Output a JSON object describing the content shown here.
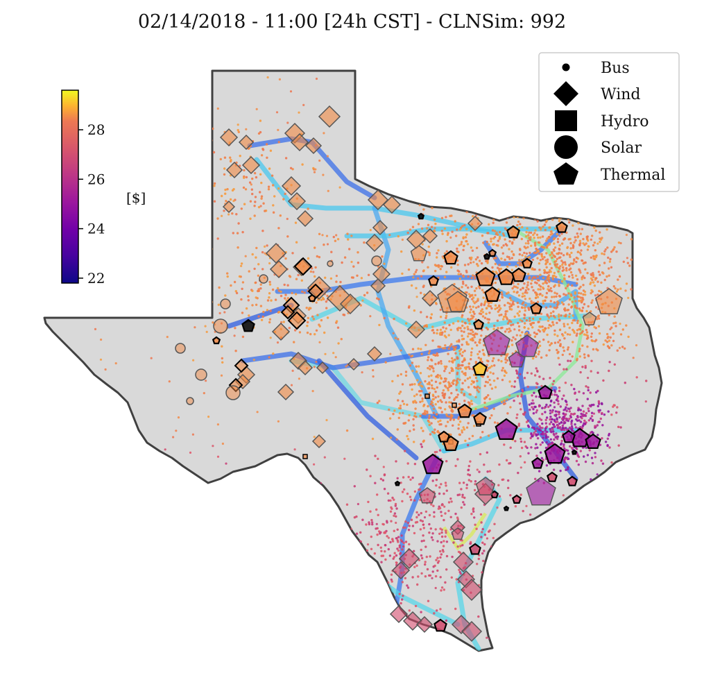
{
  "title": "02/14/2018 - 11:00 [24h CST] - CLNSim: 992",
  "colorbar": {
    "colormap": "plasma",
    "min": 21.8,
    "max": 29.6,
    "ticks": [
      "22",
      "24",
      "26",
      "28"
    ],
    "tick_values": [
      22,
      24,
      26,
      28
    ],
    "label": "[$]"
  },
  "legend": {
    "placement": "top-right",
    "entries": [
      {
        "name": "Bus",
        "marker": "dot-icon"
      },
      {
        "name": "Wind",
        "marker": "diamond-icon"
      },
      {
        "name": "Hydro",
        "marker": "square-icon"
      },
      {
        "name": "Solar",
        "marker": "circle-icon"
      },
      {
        "name": "Thermal",
        "marker": "pentagon-icon"
      }
    ]
  },
  "colors": {
    "state_fill": "#d9d9d9",
    "state_outline": "#404040",
    "north_price": "#f28a45",
    "south_price": "#d1496b",
    "houston_price": "#8e1a9e"
  }
}
